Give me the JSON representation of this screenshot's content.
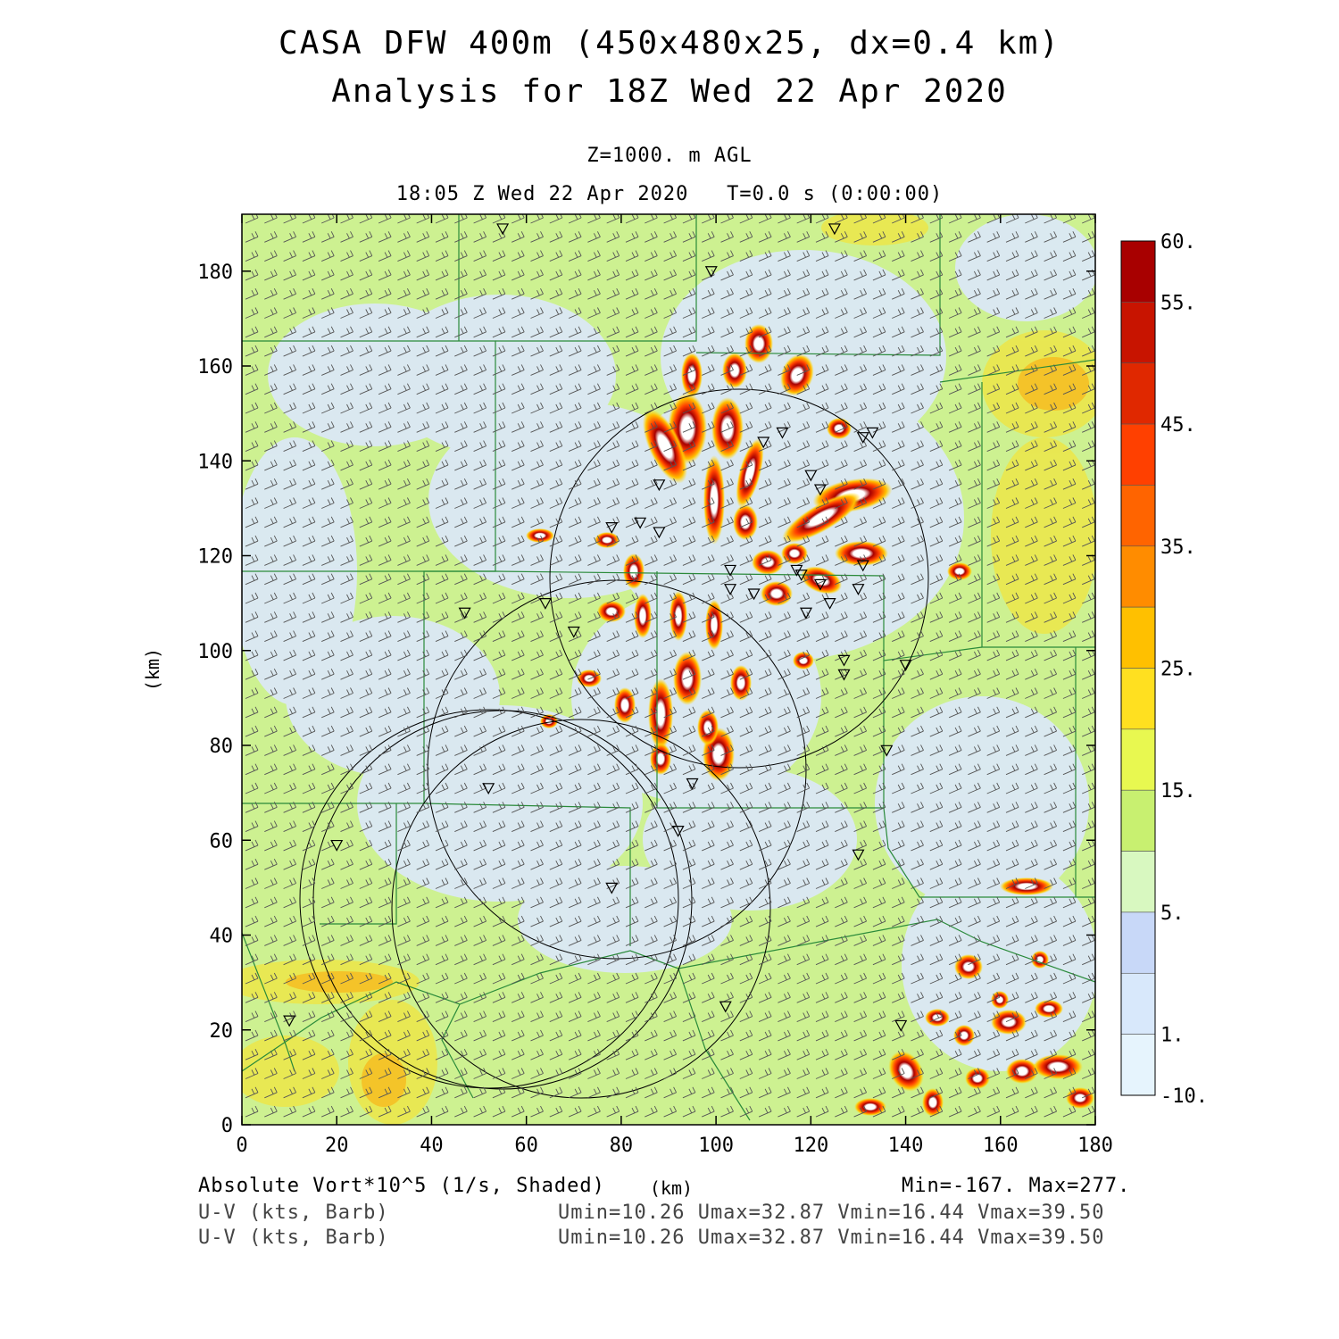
{
  "title_line1": "CASA DFW 400m (450x480x25, dx=0.4 km)",
  "title_line2": "Analysis for 18Z Wed 22 Apr 2020",
  "level_label": "Z=1000. m AGL",
  "time_label": "18:05 Z Wed 22 Apr 2020   T=0.0 s (0:00:00)",
  "x_axis": {
    "label": "(km)",
    "min": 0,
    "max": 180,
    "ticks": [
      "0",
      "20",
      "40",
      "60",
      "80",
      "100",
      "120",
      "140",
      "160",
      "180"
    ]
  },
  "y_axis": {
    "label": "(km)",
    "min": 0,
    "max": 192,
    "ticks": [
      "0",
      "20",
      "40",
      "60",
      "80",
      "100",
      "120",
      "140",
      "160",
      "180"
    ]
  },
  "colorbar": {
    "labels": [
      "60.",
      "55.",
      "45.",
      "35.",
      "25.",
      "15.",
      "5.",
      "1.",
      "-10."
    ],
    "colors": [
      "#a80000",
      "#c81400",
      "#e02800",
      "#ff4000",
      "#ff6400",
      "#ff8c00",
      "#ffc000",
      "#ffe020",
      "#e8f850",
      "#c8f070",
      "#d8f8c0",
      "#c8d8f8",
      "#d8e8fb",
      "#e6f4fd"
    ]
  },
  "fields": [
    {
      "name": "Absolute Vort*10^5 (1/s, Shaded)",
      "stats": "Min=-167. Max=277."
    },
    {
      "name": "U-V (kts, Barb)",
      "stats": "Umin=10.26 Umax=32.87 Vmin=16.44 Vmax=39.50"
    },
    {
      "name": "U-V (kts, Barb)",
      "stats": "Umin=10.26 Umax=32.87 Vmin=16.44 Vmax=39.50"
    }
  ],
  "radar_rings": [
    {
      "center": [
        98,
        155
      ],
      "radius_km": 40
    },
    {
      "center": [
        73,
        107
      ],
      "radius_km": 40
    },
    {
      "center": [
        55,
        88
      ],
      "radius_km": 40
    },
    {
      "center": [
        37,
        48
      ],
      "radius_km": 40
    },
    {
      "center": [
        72,
        46
      ],
      "radius_km": 40
    }
  ],
  "stations_km": [
    [
      55,
      189
    ],
    [
      125,
      189
    ],
    [
      99,
      180
    ],
    [
      133,
      146
    ],
    [
      131,
      145
    ],
    [
      110,
      144
    ],
    [
      114,
      146
    ],
    [
      88,
      135
    ],
    [
      120,
      137
    ],
    [
      122,
      134
    ],
    [
      78,
      126
    ],
    [
      84,
      127
    ],
    [
      88,
      125
    ],
    [
      64,
      110
    ],
    [
      103,
      113
    ],
    [
      108,
      112
    ],
    [
      103,
      117
    ],
    [
      118,
      116
    ],
    [
      117,
      117
    ],
    [
      119,
      108
    ],
    [
      124,
      110
    ],
    [
      130,
      113
    ],
    [
      131,
      118
    ],
    [
      47,
      108
    ],
    [
      70,
      104
    ],
    [
      127,
      98
    ],
    [
      127,
      95
    ],
    [
      122,
      114
    ],
    [
      140,
      97
    ],
    [
      95,
      72
    ],
    [
      52,
      71
    ],
    [
      92,
      62
    ],
    [
      20,
      59
    ],
    [
      130,
      57
    ],
    [
      78,
      50
    ],
    [
      136,
      79
    ],
    [
      102,
      25
    ],
    [
      139,
      21
    ],
    [
      10,
      22
    ]
  ]
}
